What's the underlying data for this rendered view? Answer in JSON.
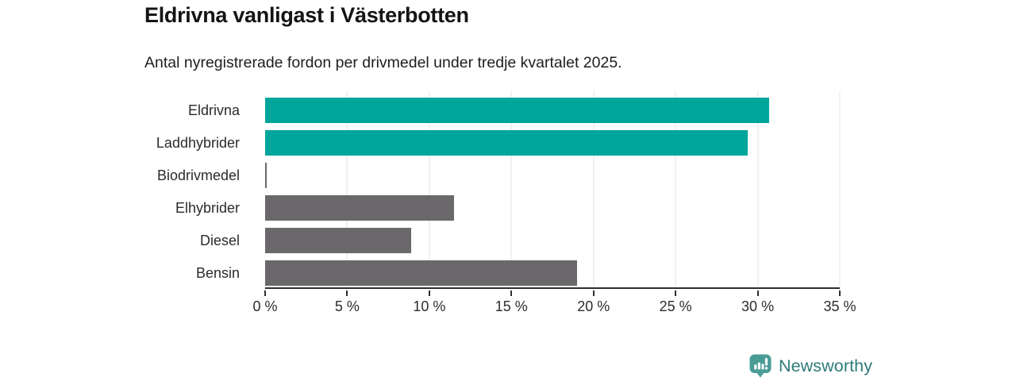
{
  "header": {
    "title": "Eldrivna vanligast i Västerbotten",
    "subtitle": "Antal nyregistrerade fordon per drivmedel under tredje kvartalet 2025."
  },
  "chart_data": {
    "type": "bar",
    "orientation": "horizontal",
    "title": "Eldrivna vanligast i Västerbotten",
    "subtitle": "Antal nyregistrerade fordon per drivmedel under tredje kvartalet 2025.",
    "categories": [
      "Eldrivna",
      "Laddhybrider",
      "Biodrivmedel",
      "Elhybrider",
      "Diesel",
      "Bensin"
    ],
    "values": [
      30.7,
      29.4,
      0.1,
      11.5,
      8.9,
      19.0
    ],
    "unit": "%",
    "xlabel": "",
    "ylabel": "",
    "xlim": [
      0,
      35
    ],
    "xticks": [
      0,
      5,
      10,
      15,
      20,
      25,
      30,
      35
    ],
    "xtick_labels": [
      "0 %",
      "5 %",
      "10 %",
      "15 %",
      "20 %",
      "25 %",
      "30 %",
      "35 %"
    ],
    "bar_colors": [
      "#00a69b",
      "#00a69b",
      "#6b686b",
      "#6b686b",
      "#6b686b",
      "#6b686b"
    ],
    "grid": true,
    "legend_position": "none"
  },
  "colors": {
    "highlight_teal": "#00a69b",
    "neutral_gray": "#6b686b",
    "gridline": "#e3e3e3",
    "axis": "#2f2f2f"
  },
  "branding": {
    "logo_text": "Newsworthy",
    "logo_icon": "bar-chart-pin-icon",
    "text_color": "#2e7a78",
    "icon_color": "#4a9c97"
  }
}
